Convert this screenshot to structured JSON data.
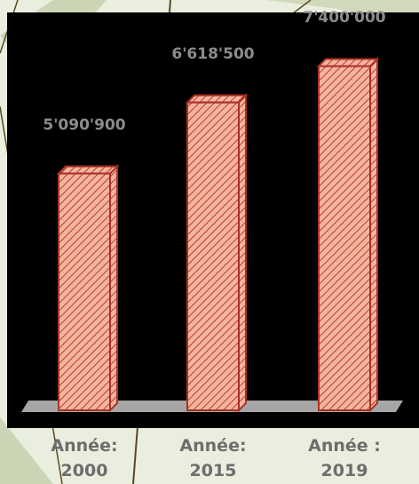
{
  "chart_data": {
    "type": "bar",
    "title": "",
    "xlabel": "",
    "ylabel": "",
    "categories": [
      "Année:\n2000",
      "Année:\n2015",
      "Année :\n2019"
    ],
    "values": [
      5090900,
      6618500,
      7400000
    ],
    "value_labels": [
      "5'090'900",
      "6'618'500",
      "7'400'000"
    ],
    "ylim": [
      0,
      7600000
    ],
    "grid": false,
    "legend": "none",
    "colors": {
      "bar_fill": "#f4b59f",
      "bar_hatch": "#c0392b",
      "bar_edge": "#a93226",
      "plot_background": "#000000",
      "floor": "#a6a6a6",
      "page_background": "#e9eedf",
      "decor_lines": "#5a4a1c",
      "decor_leaves": "#b7c49a"
    }
  }
}
